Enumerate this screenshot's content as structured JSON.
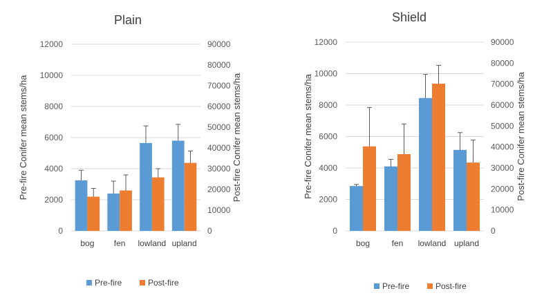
{
  "colors": {
    "pre": "#5B9BD5",
    "post": "#ED7D31",
    "grid": "#D9D9D9",
    "error": "#595959"
  },
  "chart_data": [
    {
      "type": "bar",
      "title": "Plain",
      "categories": [
        "bog",
        "fen",
        "lowland",
        "upland"
      ],
      "ylabel": "Pre-fire Conifer mean stems/ha",
      "y2label": "Post-fire Conifer mean stems/ha",
      "ylim": [
        0,
        12000
      ],
      "y2lim": [
        0,
        90000
      ],
      "yticks": [
        "0",
        "2000",
        "4000",
        "6000",
        "8000",
        "10000",
        "12000"
      ],
      "y2ticks": [
        "0",
        "10000",
        "20000",
        "30000",
        "40000",
        "50000",
        "60000",
        "70000",
        "80000",
        "90000"
      ],
      "grid": true,
      "legend_position": "bottom",
      "series": [
        {
          "name": "Pre-fire",
          "axis": "primary",
          "values": [
            3250,
            2400,
            5650,
            5800
          ],
          "error_upper": [
            3900,
            3200,
            6750,
            6850
          ]
        },
        {
          "name": "Post-fire",
          "axis": "secondary",
          "values": [
            16500,
            19500,
            25800,
            32800
          ],
          "error_upper": [
            20500,
            27000,
            30000,
            38500
          ]
        }
      ]
    },
    {
      "type": "bar",
      "title": "Shield",
      "categories": [
        "bog",
        "fen",
        "lowland",
        "upland"
      ],
      "ylabel": "Pre-fire Conifer mean stems/ha",
      "y2label": "Post-fire Conifer mean stems/ha",
      "ylim": [
        0,
        12000
      ],
      "y2lim": [
        0,
        90000
      ],
      "yticks": [
        "0",
        "2000",
        "4000",
        "6000",
        "8000",
        "10000",
        "12000"
      ],
      "y2ticks": [
        "0",
        "10000",
        "20000",
        "30000",
        "40000",
        "50000",
        "60000",
        "70000",
        "80000",
        "90000"
      ],
      "grid": true,
      "legend_position": "bottom",
      "series": [
        {
          "name": "Pre-fire",
          "axis": "primary",
          "values": [
            2850,
            4100,
            8450,
            5150
          ],
          "error_upper": [
            2950,
            4550,
            9950,
            6250
          ]
        },
        {
          "name": "Post-fire",
          "axis": "secondary",
          "values": [
            40300,
            36600,
            70200,
            32600
          ],
          "error_upper": [
            58800,
            51000,
            79000,
            43300
          ]
        }
      ]
    }
  ]
}
